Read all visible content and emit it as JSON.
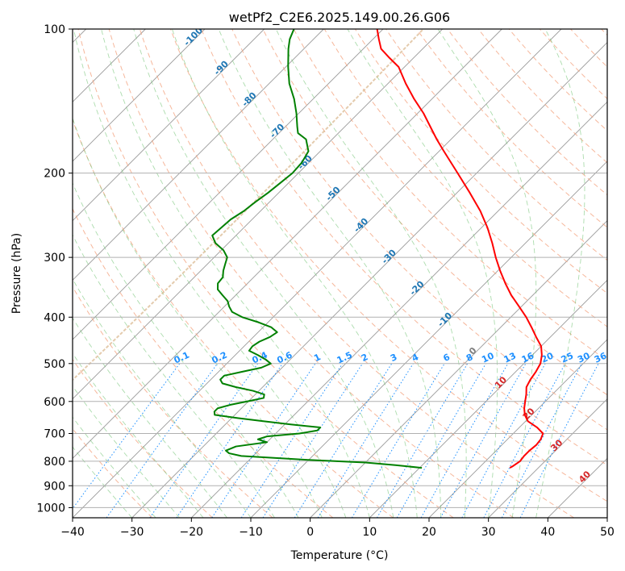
{
  "chart_data": {
    "type": "line",
    "subtype": "skew-t log-p diagram",
    "title": "wetPf2_C2E6.2025.149.00.26.G06",
    "xlabel": "Temperature (°C)",
    "ylabel": "Pressure (hPa)",
    "xlim": [
      -40,
      50
    ],
    "ylim": [
      1050,
      100
    ],
    "y_scale": "log",
    "x_ticks": [
      "−40",
      "−30",
      "−20",
      "−10",
      "0",
      "10",
      "20",
      "30",
      "40",
      "50"
    ],
    "y_ticks": [
      "100",
      "200",
      "300",
      "400",
      "500",
      "600",
      "700",
      "800",
      "900",
      "1000"
    ],
    "grid": true,
    "legend": "none",
    "series": [
      {
        "color": "#ff0000",
        "p": [
          826,
          820,
          800,
          780,
          760,
          740,
          720,
          700,
          680,
          660,
          640,
          620,
          600,
          580,
          560,
          540,
          520,
          500,
          480,
          460,
          440,
          420,
          400,
          380,
          360,
          340,
          320,
          300,
          280,
          260,
          240,
          220,
          200,
          180,
          170,
          160,
          150,
          140,
          130,
          120,
          115,
          110,
          105,
          100
        ],
        "t": [
          25.2,
          25.4,
          25.8,
          25.6,
          25.6,
          25.8,
          25.6,
          25.0,
          23.0,
          20.4,
          18.8,
          17.6,
          16.6,
          15.6,
          14.4,
          13.8,
          13.4,
          12.8,
          11.6,
          10.0,
          7.6,
          5.2,
          2.6,
          -0.4,
          -3.6,
          -6.6,
          -9.6,
          -12.6,
          -15.6,
          -19.0,
          -23.0,
          -27.8,
          -33.2,
          -39.2,
          -42.4,
          -45.6,
          -49.0,
          -53.0,
          -57.0,
          -61.0,
          -64.0,
          -67.0,
          -69.0,
          -71.0
        ]
      },
      {
        "color": "#008000",
        "p": [
          826,
          815,
          805,
          800,
          795,
          790,
          785,
          780,
          770,
          760,
          745,
          730,
          720,
          710,
          700,
          690,
          680,
          670,
          660,
          650,
          640,
          630,
          620,
          610,
          600,
          590,
          580,
          570,
          560,
          550,
          540,
          530,
          520,
          510,
          500,
          490,
          480,
          470,
          460,
          450,
          440,
          430,
          420,
          410,
          400,
          390,
          380,
          370,
          360,
          350,
          340,
          330,
          320,
          310,
          300,
          290,
          280,
          270,
          260,
          250,
          240,
          230,
          220,
          210,
          200,
          190,
          180,
          170,
          165,
          160,
          150,
          140,
          130,
          120,
          110,
          105,
          100
        ],
        "t": [
          10.4,
          5.5,
          0,
          -5,
          -10,
          -14,
          -18,
          -22,
          -24.5,
          -25.5,
          -24.5,
          -20,
          -22,
          -21,
          -16,
          -13.5,
          -13.5,
          -19,
          -24,
          -29,
          -33.4,
          -34,
          -34,
          -32.5,
          -30.2,
          -28,
          -28.5,
          -31,
          -34.5,
          -37.4,
          -38.4,
          -38.4,
          -36,
          -33.5,
          -32.6,
          -34.2,
          -36.2,
          -38.4,
          -38.6,
          -38.2,
          -37.2,
          -36.8,
          -38.6,
          -41.6,
          -45.2,
          -47.8,
          -49.2,
          -50.4,
          -52.2,
          -54,
          -55,
          -55.2,
          -56.2,
          -57,
          -57.8,
          -59.6,
          -62.2,
          -64,
          -63.8,
          -63.6,
          -62.8,
          -62.4,
          -61.8,
          -61.4,
          -61.0,
          -61.2,
          -62.0,
          -64.4,
          -66.8,
          -68.0,
          -70.4,
          -73.2,
          -76.6,
          -79.6,
          -82.6,
          -84.0,
          -85.0
        ]
      }
    ],
    "background_lines": {
      "isotherms_skewed_C": [
        -130,
        -120,
        -110,
        -100,
        -90,
        -80,
        -70,
        -60,
        -50,
        -40,
        -30,
        -20,
        -10,
        0,
        10,
        20,
        30,
        40,
        50
      ],
      "dry_adiabat_labels": [
        "-100",
        "-90",
        "-80",
        "-70",
        "-60",
        "-50",
        "-40",
        "-30",
        "-20",
        "-10",
        "0",
        "10",
        "20",
        "30",
        "40"
      ],
      "mixing_ratio_labels": [
        "0.1",
        "0.2",
        "0.4",
        "0.6",
        "1",
        "1.5",
        "2",
        "3",
        "4",
        "6",
        "8",
        "10",
        "13",
        "16",
        "20",
        "25",
        "30",
        "36"
      ],
      "mixing_ratio_values_gkg": [
        0.1,
        0.2,
        0.4,
        0.6,
        1,
        1.5,
        2,
        3,
        4,
        6,
        8,
        10,
        13,
        16,
        20,
        25,
        30,
        36
      ]
    }
  }
}
